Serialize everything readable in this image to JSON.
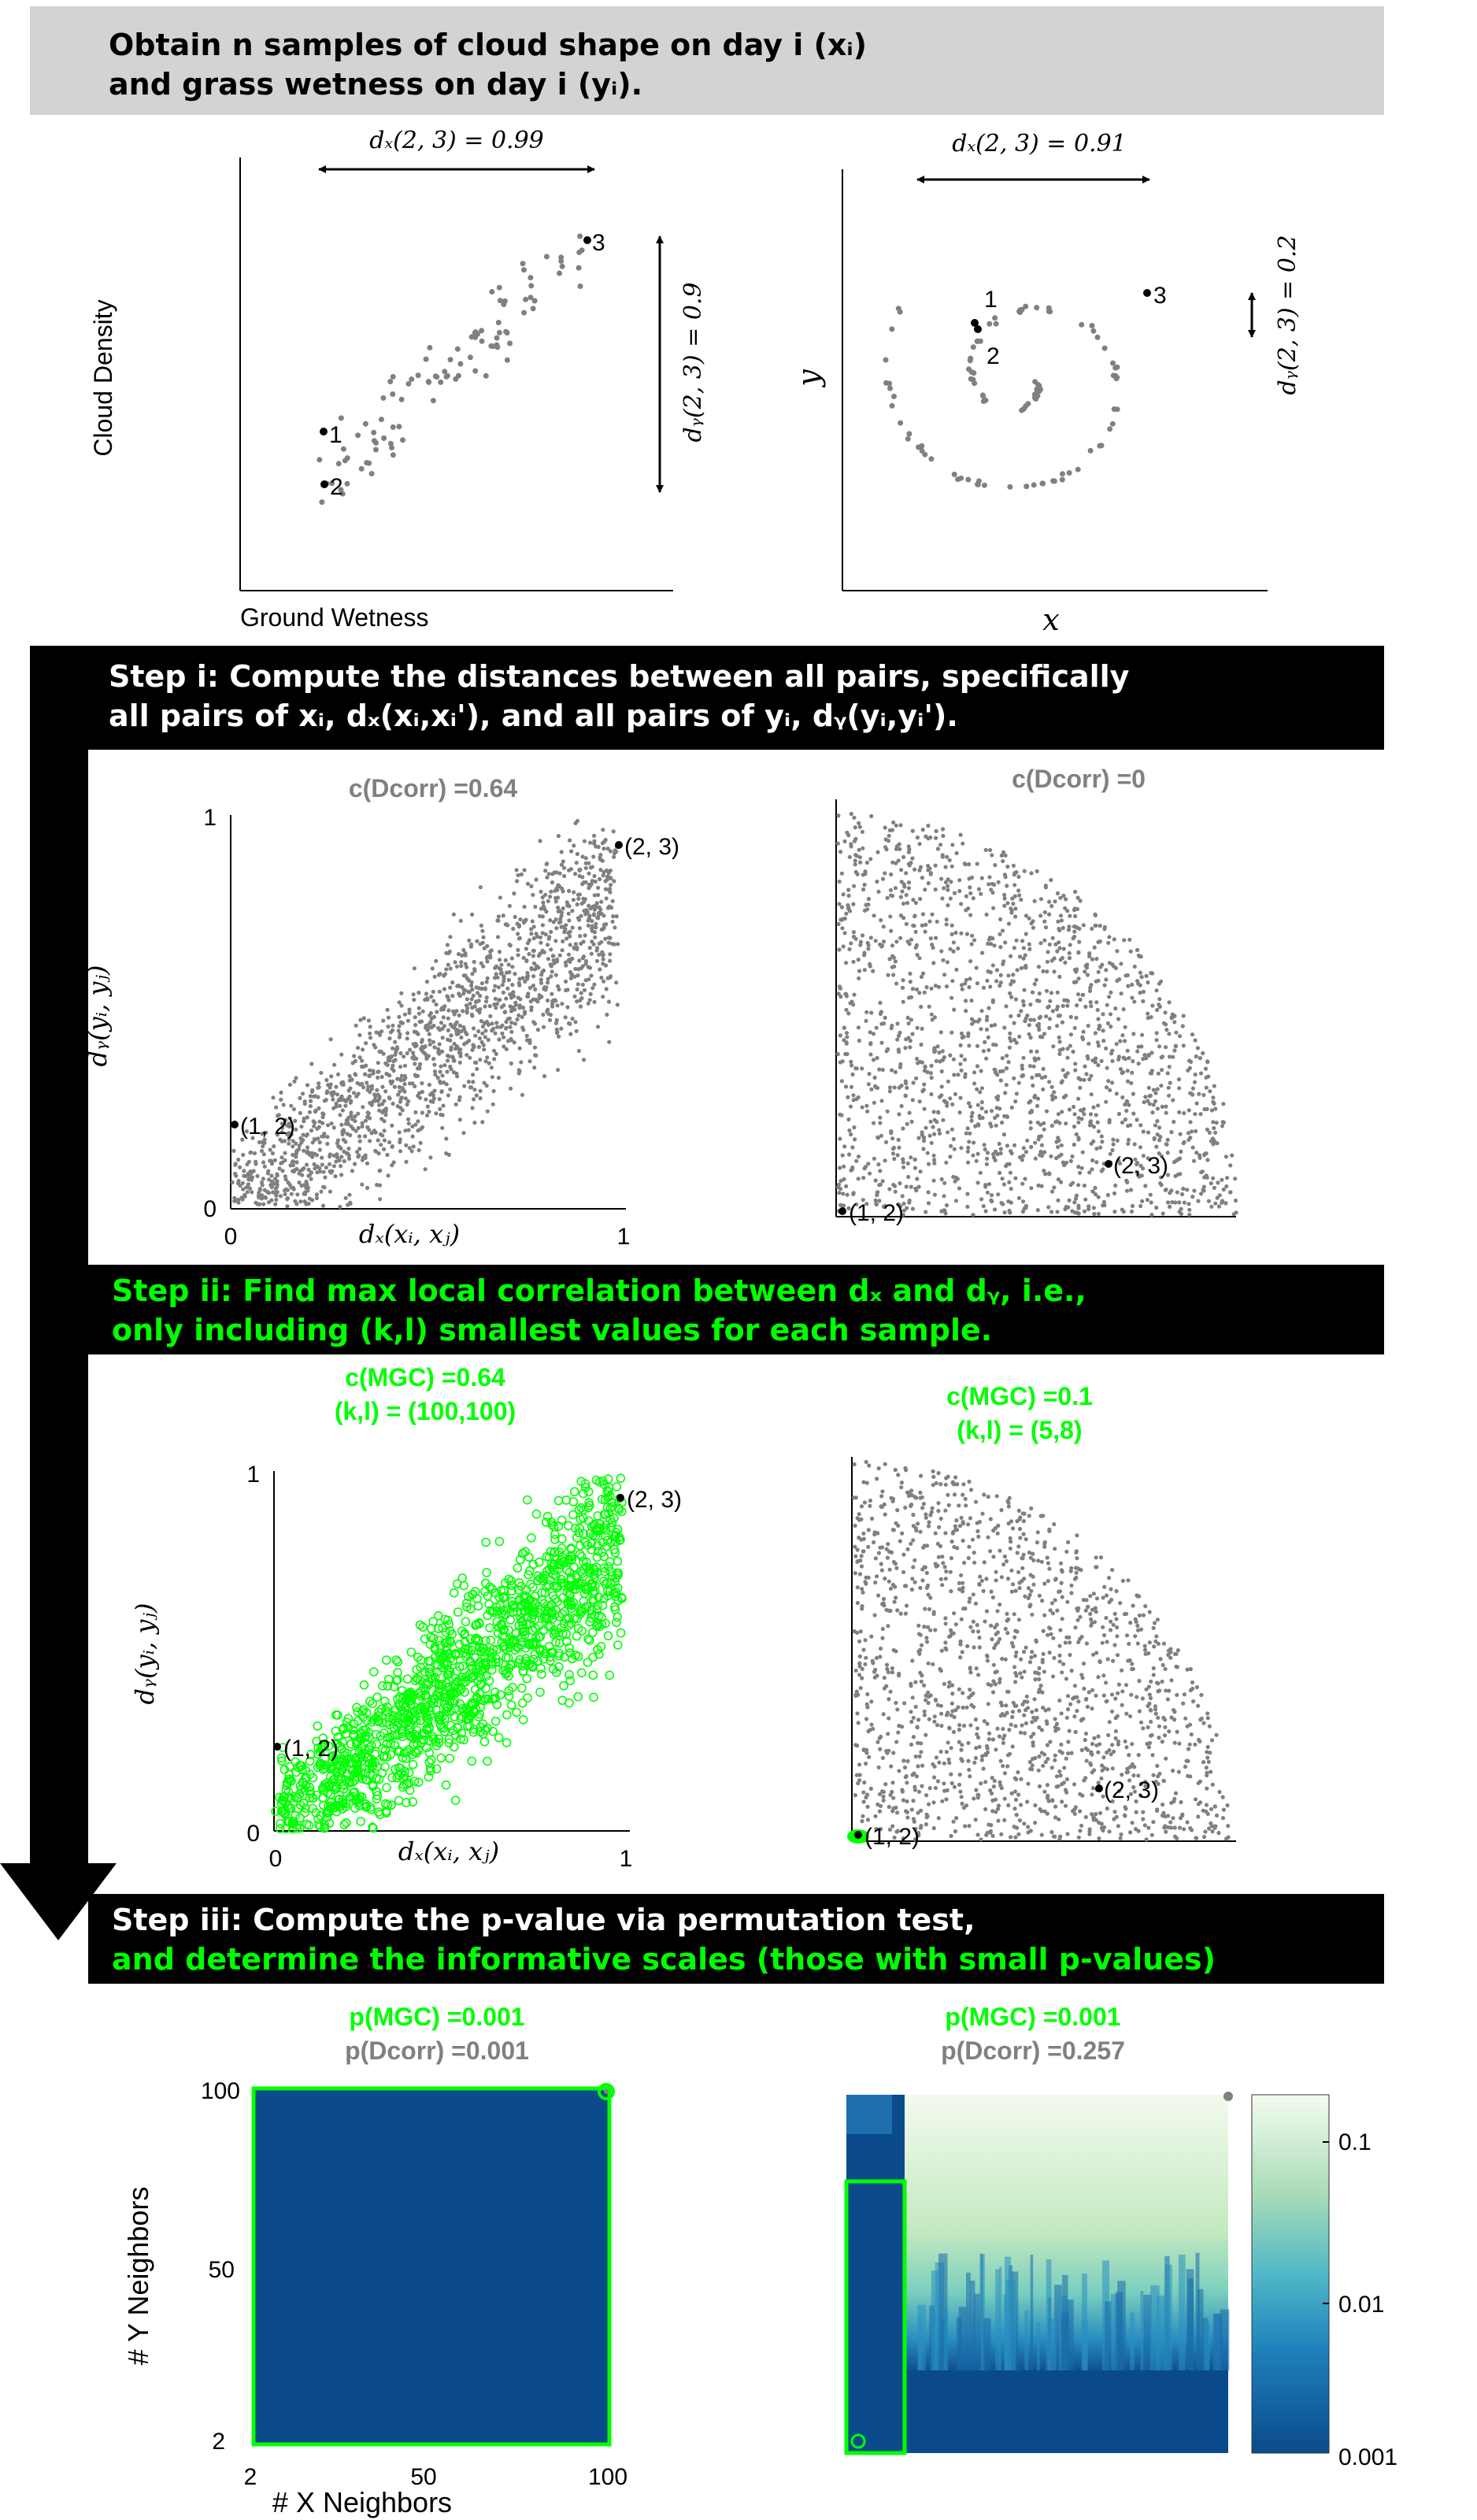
{
  "banners": [
    {
      "lines": [
        "Obtain n samples of cloud shape on day i (xᵢ)",
        "and grass wetness on day i (yᵢ)."
      ]
    },
    {
      "lines": [
        "Step i: Compute the distances between all pairs, specifically",
        "all pairs of xᵢ, dₓ(xᵢ,xᵢ'), and all pairs of yᵢ, dᵧ(yᵢ,yᵢ')."
      ]
    },
    {
      "lines": [
        "Step ii: Find max local correlation between dₓ and dᵧ, i.e.,",
        "only including (k,l) smallest values for each sample."
      ]
    },
    {
      "lines": [
        "Step iii: Compute the p-value via permutation test,",
        "and determine the informative scales (those with small p-values)"
      ]
    }
  ],
  "row1_left": {
    "top_arrow_label": "dₓ(2, 3) = 0.99",
    "side_arrow_label": "dᵧ(2, 3) = 0.9",
    "ylabel": "Cloud Density",
    "xlabel": "Ground Wetness",
    "point_labels": [
      "1",
      "2",
      "3"
    ]
  },
  "row1_right": {
    "top_arrow_label": "dₓ(2, 3) = 0.91",
    "side_arrow_label": "dᵧ(2, 3) = 0.2",
    "ylabel": "y",
    "xlabel": "x",
    "point_labels": [
      "1",
      "2",
      "3"
    ]
  },
  "row2_left": {
    "title": "c(Dcorr) =0.64",
    "ylabel": "dᵧ(yᵢ, yⱼ)",
    "xlabel": "dₓ(xᵢ, xⱼ)",
    "ticks_x": [
      "0",
      "1"
    ],
    "ticks_y": [
      "0",
      "1"
    ],
    "pair_labels": [
      "(1, 2)",
      "(2, 3)"
    ]
  },
  "row2_right": {
    "title": "c(Dcorr) =0",
    "pair_labels": [
      "(1, 2)",
      "(2, 3)"
    ]
  },
  "row3_left": {
    "title": "c(MGC) =0.64",
    "subtitle": "(k,l) = (100,100)",
    "ylabel": "dᵧ(yᵢ, yⱼ)",
    "xlabel": "dₓ(xᵢ, xⱼ)",
    "ticks_x": [
      "0",
      "1"
    ],
    "ticks_y": [
      "0",
      "1"
    ],
    "pair_labels": [
      "(1, 2)",
      "(2, 3)"
    ]
  },
  "row3_right": {
    "title": "c(MGC) =0.1",
    "subtitle": "(k,l) = (5,8)",
    "pair_labels": [
      "(1, 2)",
      "(2, 3)"
    ]
  },
  "row4_left": {
    "title_mgc": "p(MGC) =0.001",
    "title_dcorr": "p(Dcorr) =0.001",
    "ylabel": "# Y Neighbors",
    "xlabel": "# X Neighbors",
    "ticks_x": [
      "2",
      "50",
      "100"
    ],
    "ticks_y": [
      "2",
      "50",
      "100"
    ]
  },
  "row4_right": {
    "title_mgc": "p(MGC) =0.001",
    "title_dcorr": "p(Dcorr) =0.257",
    "colorbar_ticks": [
      "0.1",
      "0.01",
      "0.001"
    ]
  },
  "colors": {
    "gray_points": "#808080",
    "green": "#00ff00",
    "deep_blue": "#0b4a8b",
    "banner_gray": "#d3d3d3"
  }
}
